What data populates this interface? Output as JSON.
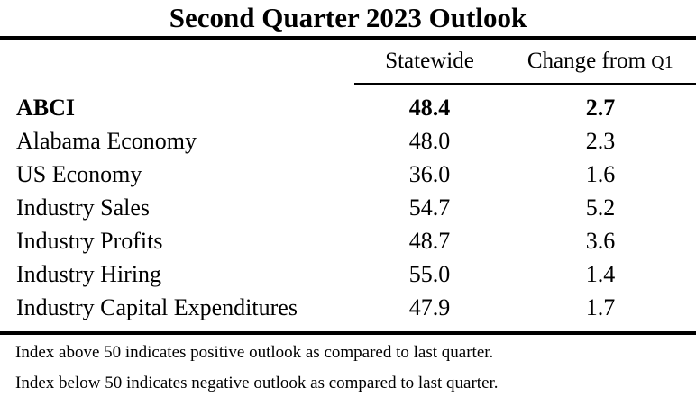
{
  "title": "Second Quarter 2023 Outlook",
  "table": {
    "columns": {
      "statewide": "Statewide",
      "change_prefix": "Change from",
      "change_q1": "Q1"
    },
    "rows": [
      {
        "label": "ABCI",
        "statewide": "48.4",
        "change": "2.7"
      },
      {
        "label": "Alabama Economy",
        "statewide": "48.0",
        "change": "2.3"
      },
      {
        "label": "US Economy",
        "statewide": "36.0",
        "change": "1.6"
      },
      {
        "label": "Industry Sales",
        "statewide": "54.7",
        "change": "5.2"
      },
      {
        "label": "Industry Profits",
        "statewide": "48.7",
        "change": "3.6"
      },
      {
        "label": "Industry Hiring",
        "statewide": "55.0",
        "change": "1.4"
      },
      {
        "label": "Industry Capital Expenditures",
        "statewide": "47.9",
        "change": "1.7"
      }
    ]
  },
  "footnotes": [
    "Index above 50 indicates positive outlook as compared to last quarter.",
    "Index below 50 indicates negative outlook as compared to last quarter."
  ],
  "colors": {
    "text": "#000000",
    "background": "#ffffff",
    "rule": "#000000"
  },
  "chart_data": {
    "type": "table",
    "title": "Second Quarter 2023 Outlook",
    "columns": [
      "",
      "Statewide",
      "Change from Q1"
    ],
    "rows": [
      [
        "ABCI",
        48.4,
        2.7
      ],
      [
        "Alabama Economy",
        48.0,
        2.3
      ],
      [
        "US Economy",
        36.0,
        1.6
      ],
      [
        "Industry Sales",
        54.7,
        5.2
      ],
      [
        "Industry Profits",
        48.7,
        3.6
      ],
      [
        "Industry Hiring",
        55.0,
        1.4
      ],
      [
        "Industry Capital Expenditures",
        47.9,
        1.7
      ]
    ],
    "notes": [
      "Index above 50 indicates positive outlook as compared to last quarter.",
      "Index below 50 indicates negative outlook as compared to last quarter."
    ],
    "bold_rows": [
      0
    ]
  }
}
